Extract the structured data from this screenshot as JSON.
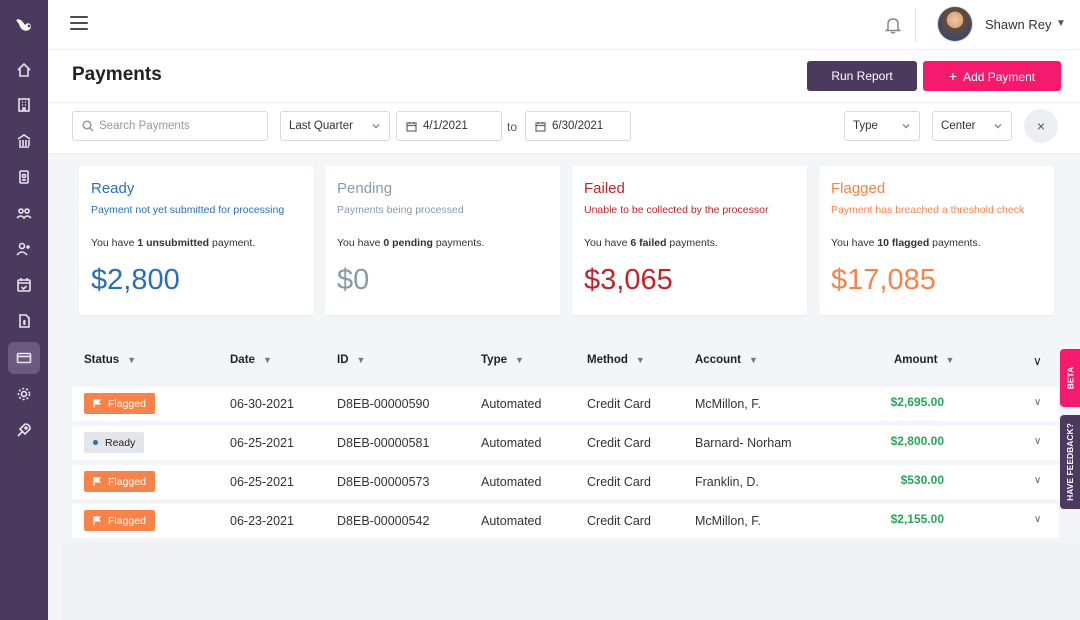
{
  "colors": {
    "sidebar": "#4a3a5e",
    "accent": "#f51a6e",
    "primary_dark": "#4b3a5e",
    "ready": "#2a6fb5",
    "pending": "#8a9aa8",
    "failed": "#c0242c",
    "flagged": "#f5834a",
    "amount": "#2aa45a"
  },
  "sidebar": {
    "logo_icon": "bird-logo-icon",
    "items": [
      {
        "icon": "home-icon",
        "active": false
      },
      {
        "icon": "building-icon",
        "active": false
      },
      {
        "icon": "bank-icon",
        "active": false
      },
      {
        "icon": "badge-icon",
        "active": false
      },
      {
        "icon": "group-icon",
        "active": false
      },
      {
        "icon": "add-user-icon",
        "active": false
      },
      {
        "icon": "calendar-check-icon",
        "active": false
      },
      {
        "icon": "document-dollar-icon",
        "active": false
      },
      {
        "icon": "credit-card-icon",
        "active": true
      },
      {
        "icon": "gear-icon",
        "active": false
      },
      {
        "icon": "rocket-icon",
        "active": false
      }
    ]
  },
  "header": {
    "user_name": "Shawn Rey"
  },
  "page": {
    "title": "Payments",
    "run_report": "Run Report",
    "add_payment": "Add Payment"
  },
  "filters": {
    "search_placeholder": "Search Payments",
    "period": "Last Quarter",
    "date_from": "4/1/2021",
    "to_label": "to",
    "date_to": "6/30/2021",
    "type": "Type",
    "center": "Center",
    "clear": "×"
  },
  "cards": [
    {
      "title": "Ready",
      "subtitle": "Payment not yet submitted for processing",
      "pre": "You have ",
      "count_label": "1 unsubmitted",
      "post": " payment.",
      "amount": "$2,800"
    },
    {
      "title": "Pending",
      "subtitle": "Payments being processed",
      "pre": "You have ",
      "count_label": "0 pending",
      "post": " payments.",
      "amount": "$0"
    },
    {
      "title": "Failed",
      "subtitle": "Unable to be collected by the processor",
      "pre": "You have ",
      "count_label": "6 failed",
      "post": " payments.",
      "amount": "$3,065"
    },
    {
      "title": "Flagged",
      "subtitle": "Payment has breached a threshold check",
      "pre": "You have ",
      "count_label": "10 flagged",
      "post": " payments.",
      "amount": "$17,085"
    }
  ],
  "table": {
    "columns": [
      "Status",
      "Date",
      "ID",
      "Type",
      "Method",
      "Account",
      "Amount"
    ],
    "rows": [
      {
        "status": "Flagged",
        "date": "06-30-2021",
        "id": "D8EB-00000590",
        "type": "Automated",
        "method": "Credit Card",
        "account": "McMillon, F.",
        "amount": "$2,695.00"
      },
      {
        "status": "Ready",
        "date": "06-25-2021",
        "id": "D8EB-00000581",
        "type": "Automated",
        "method": "Credit Card",
        "account": "Barnard- Norham",
        "amount": "$2,800.00"
      },
      {
        "status": "Flagged",
        "date": "06-25-2021",
        "id": "D8EB-00000573",
        "type": "Automated",
        "method": "Credit Card",
        "account": "Franklin, D.",
        "amount": "$530.00"
      },
      {
        "status": "Flagged",
        "date": "06-23-2021",
        "id": "D8EB-00000542",
        "type": "Automated",
        "method": "Credit Card",
        "account": "McMillon, F.",
        "amount": "$2,155.00"
      }
    ]
  },
  "side_tabs": {
    "beta": "BETA",
    "feedback": "HAVE FEEDBACK?"
  }
}
